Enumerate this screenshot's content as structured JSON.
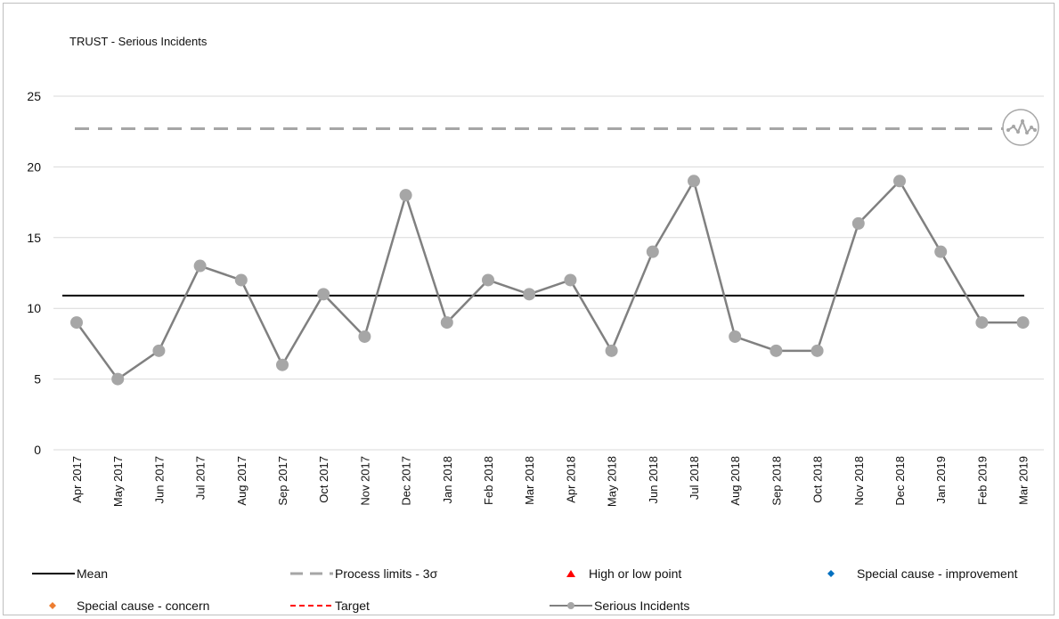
{
  "chart_data": {
    "type": "line",
    "title": "TRUST - Serious Incidents",
    "categories": [
      "Apr 2017",
      "May 2017",
      "Jun 2017",
      "Jul 2017",
      "Aug 2017",
      "Sep 2017",
      "Oct 2017",
      "Nov 2017",
      "Dec 2017",
      "Jan 2018",
      "Feb 2018",
      "Mar 2018",
      "Apr 2018",
      "May 2018",
      "Jun 2018",
      "Jul 2018",
      "Aug 2018",
      "Sep 2018",
      "Oct 2018",
      "Nov 2018",
      "Dec 2018",
      "Jan 2019",
      "Feb 2019",
      "Mar 2019"
    ],
    "series": [
      {
        "name": "Serious Incidents",
        "values": [
          9,
          5,
          7,
          13,
          12,
          6,
          11,
          8,
          18,
          9,
          12,
          11,
          12,
          7,
          14,
          19,
          8,
          7,
          7,
          16,
          19,
          14,
          9,
          9
        ],
        "color": "#808080"
      }
    ],
    "mean": 10.9,
    "upper_process_limit": 22.7,
    "ylim": [
      0,
      25
    ],
    "yticks": [
      0,
      5,
      10,
      15,
      20,
      25
    ],
    "grid": true,
    "legend_position": "bottom",
    "legend": [
      {
        "label": "Mean",
        "symbol": "solid-line",
        "color": "#000000"
      },
      {
        "label": "Process limits - 3σ",
        "symbol": "dashed-line",
        "color": "#a6a6a6"
      },
      {
        "label": "High or low point",
        "symbol": "triangle",
        "color": "#ff0000"
      },
      {
        "label": "Special cause - improvement",
        "symbol": "diamond",
        "color": "#0070c0"
      },
      {
        "label": "Special cause - concern",
        "symbol": "diamond",
        "color": "#ed7d31"
      },
      {
        "label": "Target",
        "symbol": "dashed-line",
        "color": "#ff0000"
      },
      {
        "label": "Serious Incidents",
        "symbol": "line-marker",
        "color": "#808080"
      }
    ],
    "variation_icon": "common-cause-variation-icon"
  }
}
